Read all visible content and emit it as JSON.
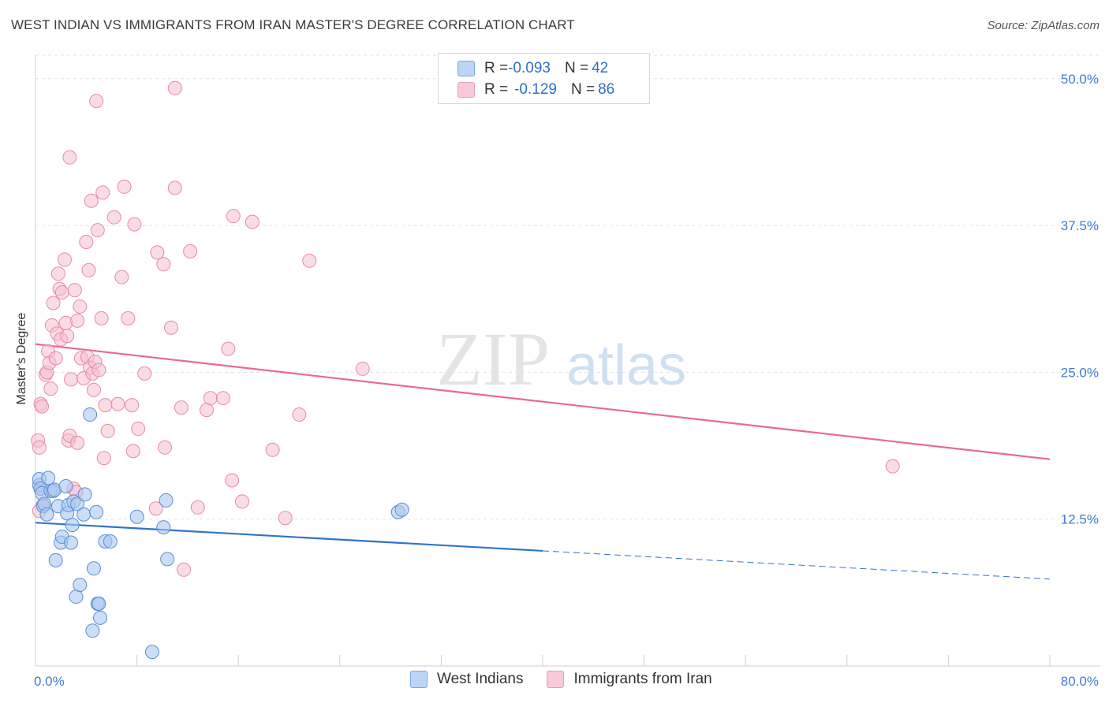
{
  "title": "WEST INDIAN VS IMMIGRANTS FROM IRAN MASTER'S DEGREE CORRELATION CHART",
  "source": "Source: ZipAtlas.com",
  "watermark": {
    "zip": "ZIP",
    "atlas": "atlas"
  },
  "legend": {
    "rows": [
      {
        "r_label": "R = ",
        "r_value": "-0.093",
        "n_label": "N = ",
        "n_value": "42"
      },
      {
        "r_label": "R = ",
        "r_value": "-0.129",
        "n_label": "N = ",
        "n_value": "86"
      }
    ]
  },
  "colors": {
    "blue_fill": "#a9c8f0",
    "blue_stroke": "#5b8fd6",
    "blue_line": "#2f72d0",
    "pink_fill": "#f6bfcf",
    "pink_stroke": "#e98aa8",
    "pink_line": "#e86a93",
    "tick_label": "#3f7fcf",
    "grid": "#e3e3e3"
  },
  "chart_data": {
    "type": "scatter",
    "xlabel": "",
    "ylabel": "Master's Degree",
    "xlim": [
      0,
      80
    ],
    "ylim": [
      0,
      52
    ],
    "x_tick_labels": [
      "0.0%",
      "80.0%"
    ],
    "y_ticks": [
      12.5,
      25.0,
      37.5,
      50.0
    ],
    "y_tick_labels": [
      "12.5%",
      "25.0%",
      "37.5%",
      "50.0%"
    ],
    "grid": "horizontal dashed",
    "legend_position": "top-center",
    "series": [
      {
        "name": "West Indians",
        "color": "#a9c8f0",
        "trend": {
          "x0": 0,
          "y0": 12.2,
          "x1": 40,
          "y1": 9.8,
          "dashed_to_x": 80,
          "dashed_to_y": 7.4
        },
        "points": [
          [
            0.3,
            15.4
          ],
          [
            0.3,
            15.9
          ],
          [
            0.4,
            15.1
          ],
          [
            0.5,
            14.7
          ],
          [
            0.6,
            13.6
          ],
          [
            0.7,
            13.8
          ],
          [
            0.9,
            12.9
          ],
          [
            1.0,
            16.0
          ],
          [
            1.2,
            14.9
          ],
          [
            1.4,
            14.9
          ],
          [
            1.5,
            15.0
          ],
          [
            1.6,
            9.0
          ],
          [
            1.8,
            13.6
          ],
          [
            2.0,
            10.5
          ],
          [
            2.1,
            11.0
          ],
          [
            2.4,
            15.3
          ],
          [
            2.5,
            13.0
          ],
          [
            2.6,
            13.7
          ],
          [
            2.8,
            10.5
          ],
          [
            2.9,
            12.0
          ],
          [
            3.0,
            14.0
          ],
          [
            3.2,
            5.9
          ],
          [
            3.3,
            13.8
          ],
          [
            3.5,
            6.9
          ],
          [
            3.8,
            12.9
          ],
          [
            3.9,
            14.6
          ],
          [
            4.3,
            21.4
          ],
          [
            4.5,
            3.0
          ],
          [
            4.6,
            8.3
          ],
          [
            4.8,
            13.1
          ],
          [
            4.9,
            5.3
          ],
          [
            5.0,
            5.3
          ],
          [
            5.1,
            4.1
          ],
          [
            5.5,
            10.6
          ],
          [
            5.9,
            10.6
          ],
          [
            8.0,
            12.7
          ],
          [
            9.2,
            1.2
          ],
          [
            10.1,
            11.8
          ],
          [
            10.3,
            14.1
          ],
          [
            10.4,
            9.1
          ],
          [
            28.6,
            13.1
          ],
          [
            28.9,
            13.3
          ]
        ]
      },
      {
        "name": "Immigrants from Iran",
        "color": "#f6bfcf",
        "trend": {
          "x0": 0,
          "y0": 27.4,
          "x1": 80,
          "y1": 17.6
        },
        "points": [
          [
            0.2,
            19.2
          ],
          [
            0.3,
            18.6
          ],
          [
            0.4,
            15.1
          ],
          [
            0.4,
            22.3
          ],
          [
            0.5,
            22.1
          ],
          [
            0.6,
            13.7
          ],
          [
            0.8,
            24.8
          ],
          [
            0.9,
            25.0
          ],
          [
            1.0,
            26.8
          ],
          [
            1.1,
            25.8
          ],
          [
            1.2,
            23.6
          ],
          [
            1.3,
            29.0
          ],
          [
            1.4,
            30.9
          ],
          [
            1.6,
            26.2
          ],
          [
            1.7,
            28.3
          ],
          [
            1.8,
            33.4
          ],
          [
            1.9,
            32.1
          ],
          [
            2.0,
            27.8
          ],
          [
            2.1,
            31.8
          ],
          [
            2.3,
            34.6
          ],
          [
            2.4,
            29.2
          ],
          [
            2.5,
            28.1
          ],
          [
            2.6,
            19.2
          ],
          [
            2.7,
            43.3
          ],
          [
            2.7,
            19.6
          ],
          [
            2.8,
            24.4
          ],
          [
            3.0,
            15.1
          ],
          [
            3.1,
            32.0
          ],
          [
            3.2,
            14.8
          ],
          [
            3.3,
            29.4
          ],
          [
            3.3,
            19.0
          ],
          [
            3.5,
            30.6
          ],
          [
            3.6,
            26.2
          ],
          [
            3.8,
            24.5
          ],
          [
            4.0,
            36.1
          ],
          [
            4.1,
            26.3
          ],
          [
            4.2,
            33.7
          ],
          [
            4.3,
            25.4
          ],
          [
            4.4,
            39.6
          ],
          [
            4.5,
            24.9
          ],
          [
            4.6,
            23.5
          ],
          [
            4.7,
            25.9
          ],
          [
            4.8,
            48.1
          ],
          [
            4.9,
            37.1
          ],
          [
            5.0,
            25.2
          ],
          [
            5.2,
            29.6
          ],
          [
            5.3,
            40.3
          ],
          [
            5.4,
            17.7
          ],
          [
            5.5,
            22.2
          ],
          [
            5.7,
            20.0
          ],
          [
            6.2,
            38.2
          ],
          [
            6.5,
            22.3
          ],
          [
            6.8,
            33.1
          ],
          [
            7.0,
            40.8
          ],
          [
            7.3,
            29.6
          ],
          [
            7.6,
            22.2
          ],
          [
            7.7,
            18.3
          ],
          [
            7.8,
            37.6
          ],
          [
            8.1,
            20.2
          ],
          [
            8.6,
            24.9
          ],
          [
            9.5,
            13.4
          ],
          [
            9.6,
            35.2
          ],
          [
            10.1,
            34.2
          ],
          [
            10.2,
            18.6
          ],
          [
            10.7,
            28.8
          ],
          [
            11.0,
            40.7
          ],
          [
            11.0,
            49.2
          ],
          [
            11.5,
            22.0
          ],
          [
            11.7,
            8.2
          ],
          [
            12.2,
            35.3
          ],
          [
            12.8,
            13.5
          ],
          [
            13.5,
            21.8
          ],
          [
            13.8,
            22.8
          ],
          [
            14.8,
            22.8
          ],
          [
            15.2,
            27.0
          ],
          [
            15.5,
            15.8
          ],
          [
            15.6,
            38.3
          ],
          [
            16.3,
            14.0
          ],
          [
            17.1,
            37.8
          ],
          [
            18.7,
            18.4
          ],
          [
            19.7,
            12.6
          ],
          [
            20.8,
            21.4
          ],
          [
            21.6,
            34.5
          ],
          [
            25.8,
            25.3
          ],
          [
            67.6,
            17.0
          ],
          [
            0.3,
            13.2
          ]
        ]
      }
    ]
  },
  "bottom_legend": [
    "West Indians",
    "Immigrants from Iran"
  ]
}
